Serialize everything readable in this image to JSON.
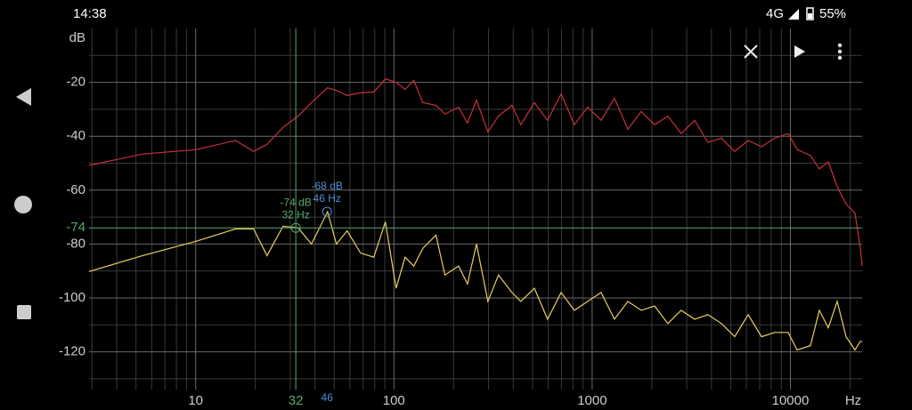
{
  "status_bar": {
    "time": "14:38",
    "network": "4G",
    "battery": "55%"
  },
  "chart_data": {
    "type": "line",
    "xscale": "log",
    "grid": true,
    "y_unit": "dB",
    "x_unit": "Hz",
    "xlim": [
      2.9,
      23000
    ],
    "ylim": [
      -134,
      0
    ],
    "xticks": [
      10,
      100,
      1000,
      10000
    ],
    "minor_xticks": [
      3,
      4,
      5,
      6,
      7,
      8,
      9,
      20,
      30,
      40,
      50,
      60,
      70,
      80,
      90,
      200,
      300,
      400,
      500,
      600,
      700,
      800,
      900,
      2000,
      3000,
      4000,
      5000,
      6000,
      7000,
      8000,
      9000,
      20000
    ],
    "yticks": [
      -20,
      -40,
      -60,
      -80,
      -100,
      -120
    ],
    "minor_yticks": [
      -10,
      -30,
      -50,
      -70,
      -90,
      -110,
      -130
    ],
    "x": [
      2.9,
      5.4,
      10,
      15.9,
      19.6,
      22.9,
      27.6,
      32.9,
      38.4,
      46.3,
      51.3,
      58.1,
      67.8,
      79.2,
      90.6,
      102.6,
      113.8,
      126,
      140,
      163,
      181,
      212,
      235,
      261,
      298,
      337,
      394,
      437,
      511,
      596,
      697,
      813,
      950,
      1109,
      1295,
      1514,
      1766,
      2065,
      2410,
      2812,
      3289,
      3837,
      4487,
      5236,
      6124,
      7145,
      8337,
      9750,
      10810,
      12620,
      14000,
      15520,
      17220,
      19100,
      21180,
      22540,
      23010
    ],
    "series": [
      {
        "color": "#c8303c",
        "values": [
          -50.8,
          -46.6,
          -45.0,
          -41.6,
          -45.6,
          -43.0,
          -36.7,
          -32.5,
          -27.5,
          -22.0,
          -23.0,
          -24.9,
          -23.9,
          -23.6,
          -18.7,
          -20.0,
          -22.6,
          -19.3,
          -27.5,
          -28.5,
          -31.8,
          -29.2,
          -35.1,
          -26.6,
          -38.4,
          -32.5,
          -28.5,
          -35.7,
          -27.5,
          -34.1,
          -24.3,
          -35.7,
          -29.2,
          -34.1,
          -25.9,
          -37.4,
          -30.8,
          -35.7,
          -32.5,
          -39.0,
          -34.1,
          -42.3,
          -40.7,
          -45.6,
          -41.6,
          -43.9,
          -40.7,
          -39.0,
          -44.9,
          -47.2,
          -52.1,
          -49.5,
          -58.7,
          -65.2,
          -68.5,
          -81.6,
          -88.2
        ]
      },
      {
        "color": "#e8d060",
        "values": [
          -90.2,
          -84.3,
          -79.0,
          -74.4,
          -74.4,
          -84.3,
          -73.4,
          -74.0,
          -80.0,
          -68.0,
          -80.0,
          -75.1,
          -83.3,
          -84.9,
          -71.8,
          -96.4,
          -84.9,
          -88.2,
          -81.6,
          -76.7,
          -91.5,
          -88.2,
          -94.8,
          -80.0,
          -101.3,
          -91.5,
          -98.0,
          -101.3,
          -96.4,
          -107.9,
          -98.0,
          -104.6,
          -101.3,
          -98.0,
          -107.9,
          -101.3,
          -104.6,
          -103.0,
          -109.5,
          -104.6,
          -107.9,
          -106.2,
          -109.5,
          -114.4,
          -106.2,
          -114.4,
          -112.8,
          -112.8,
          -119.3,
          -117.7,
          -104.6,
          -111.1,
          -101.3,
          -114.4,
          -119.3,
          -116.1,
          -116.1
        ]
      }
    ],
    "cursor": {
      "x": 32,
      "y": -74,
      "color": "#5aa86a",
      "text": [
        "-74 dB",
        "32 Hz"
      ]
    },
    "marker": {
      "x": 46,
      "y": -68,
      "color": "#4a90d8",
      "text": [
        "-68 dB",
        "46 Hz"
      ]
    }
  }
}
